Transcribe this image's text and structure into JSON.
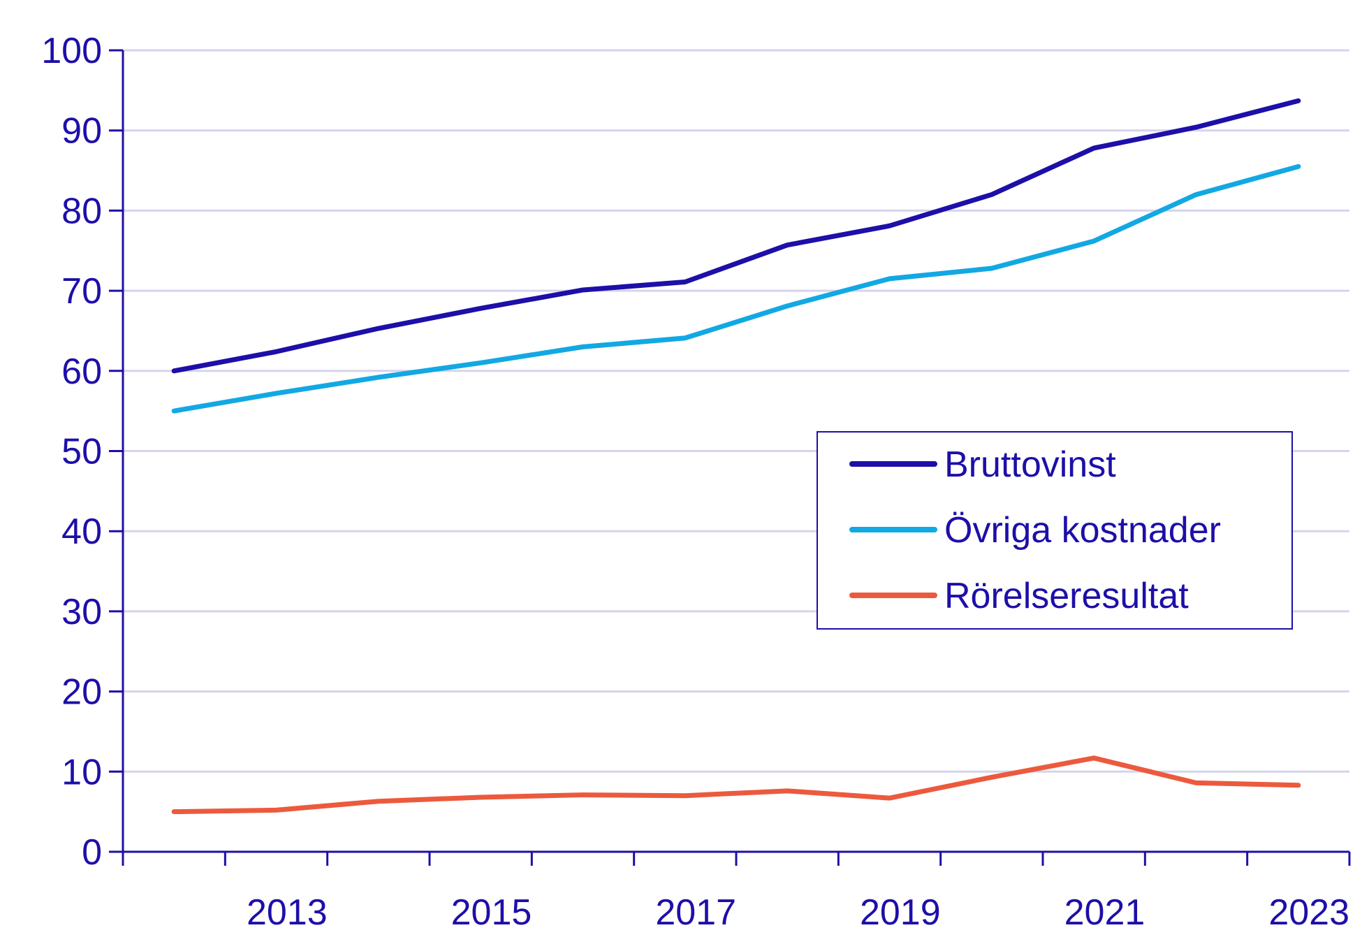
{
  "chart_data": {
    "type": "line",
    "x": [
      2012,
      2013,
      2014,
      2015,
      2016,
      2017,
      2018,
      2019,
      2020,
      2021,
      2022,
      2023
    ],
    "x_tick_labels": [
      "2013",
      "2015",
      "2017",
      "2019",
      "2021",
      "2023"
    ],
    "x_tick_values": [
      2013,
      2015,
      2017,
      2019,
      2021,
      2023
    ],
    "y_ticks": [
      0,
      10,
      20,
      30,
      40,
      50,
      60,
      70,
      80,
      90,
      100
    ],
    "ylim": [
      0,
      100
    ],
    "grid": true,
    "legend_position": "right-center",
    "series": [
      {
        "name": "Bruttovinst",
        "color": "#1d0fa8",
        "values": [
          60,
          62.4,
          65.3,
          67.8,
          70.1,
          71.1,
          75.7,
          78.1,
          82.0,
          87.8,
          90.4,
          93.7
        ]
      },
      {
        "name": "Övriga kostnader",
        "color": "#12a8e3",
        "values": [
          55,
          57.2,
          59.2,
          61.0,
          63.0,
          64.1,
          68.1,
          71.5,
          72.8,
          76.2,
          82.0,
          85.5
        ]
      },
      {
        "name": "Rörelseresultat",
        "color": "#ec5a3d",
        "values": [
          5,
          5.2,
          6.3,
          6.8,
          7.1,
          7.0,
          7.6,
          6.7,
          9.3,
          11.7,
          8.6,
          8.3
        ]
      }
    ],
    "axis_color": "#1d0fa8",
    "grid_color": "#d6d3ec"
  }
}
